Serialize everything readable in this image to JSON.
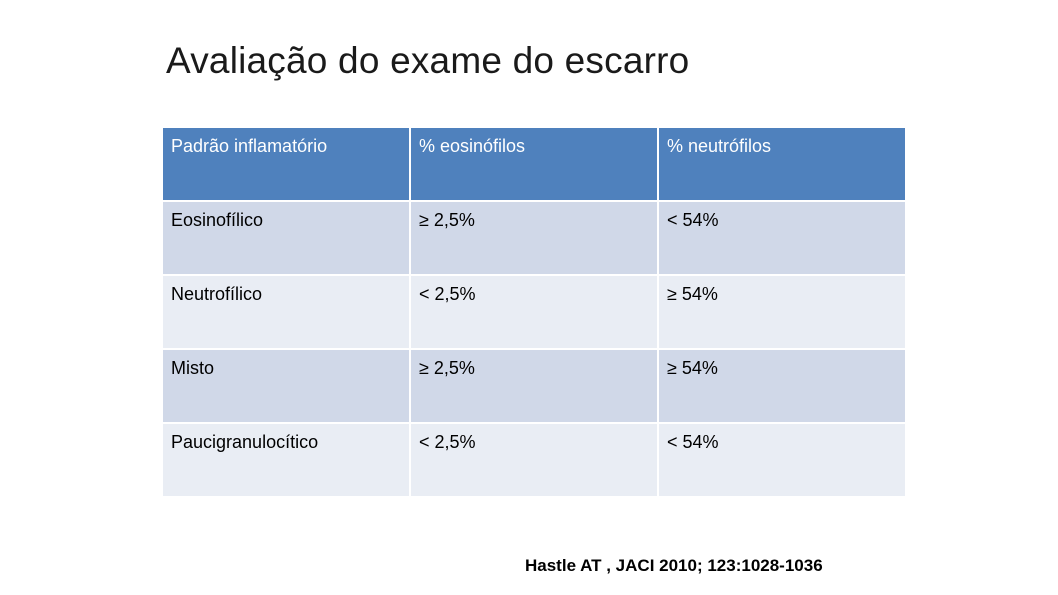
{
  "title": "Avaliação do exame do escarro",
  "table": {
    "headers": [
      "Padrão inflamatório",
      "% eosinófilos",
      "% neutrófilos"
    ],
    "rows": [
      [
        "Eosinofílico",
        "≥ 2,5%",
        "< 54%"
      ],
      [
        "Neutrofílico",
        "< 2,5%",
        "≥ 54%"
      ],
      [
        "Misto",
        "≥ 2,5%",
        "≥ 54%"
      ],
      [
        "Paucigranulocítico",
        "< 2,5%",
        "< 54%"
      ]
    ]
  },
  "citation": "Hastle AT , JACI 2010; 123:1028-1036",
  "colors": {
    "header_bg": "#4f81bd",
    "row_odd_bg": "#d0d8e8",
    "row_even_bg": "#e9edf4"
  }
}
